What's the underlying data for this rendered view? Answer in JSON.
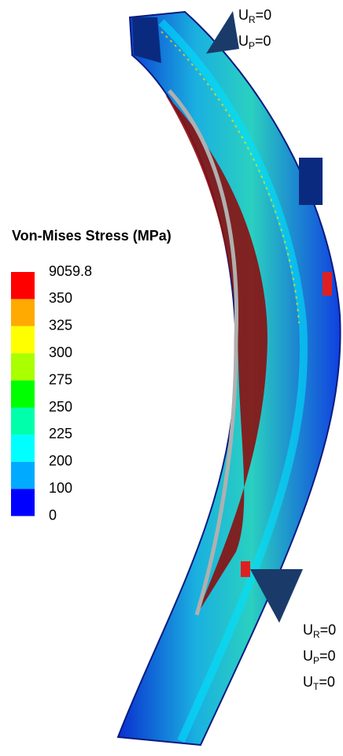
{
  "legend": {
    "title": "Von-Mises Stress (MPa)",
    "levels": [
      9059.8,
      350,
      325,
      300,
      275,
      250,
      225,
      200,
      100,
      0
    ],
    "colors": [
      "#ff0000",
      "#ffaa00",
      "#ffff00",
      "#aaff00",
      "#00ff00",
      "#00ffaa",
      "#00ffff",
      "#00aaff",
      "#0000ff"
    ]
  },
  "constraints": [
    {
      "labels": [
        {
          "symbol": "U",
          "subscript": "R",
          "rest": "=0"
        },
        {
          "symbol": "U",
          "subscript": "P",
          "rest": "=0"
        }
      ]
    },
    {
      "labels": [
        {
          "symbol": "U",
          "subscript": "R",
          "rest": "=0"
        },
        {
          "symbol": "U",
          "subscript": "P",
          "rest": "=0"
        },
        {
          "symbol": "U",
          "subscript": "T",
          "rest": "=0"
        }
      ]
    }
  ]
}
